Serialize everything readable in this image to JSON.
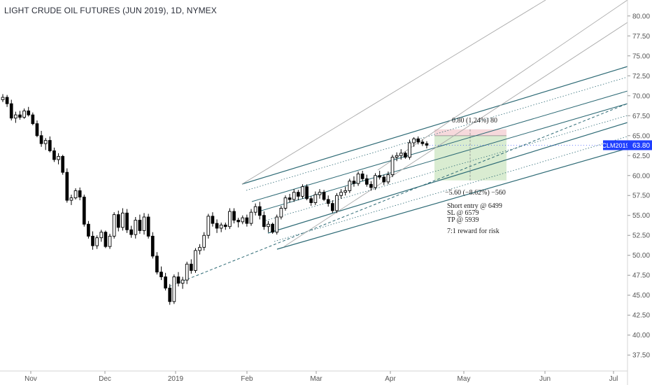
{
  "chart_title": "LIGHT CRUDE OIL FUTURES (JUN 2019), 1D, NYMEX",
  "price_tag": {
    "symbol": "CLM2019",
    "value": "63.80",
    "color": "#1f3fff"
  },
  "colors": {
    "up": "#ffffff",
    "down": "#000000",
    "channel": "#2d6a75",
    "guide": "#a9a9a9",
    "stop_zone": "#f6d9dc",
    "target_zone": "#d9ecd1"
  },
  "chart_data": {
    "type": "candlestick",
    "interval": "1D",
    "ylim": [
      35.5,
      82
    ],
    "y_ticks": [
      "37.50",
      "40.00",
      "42.50",
      "45.00",
      "47.50",
      "50.00",
      "52.50",
      "55.00",
      "57.50",
      "60.00",
      "62.50",
      "65.00",
      "67.50",
      "70.00",
      "72.50",
      "75.00",
      "77.50",
      "80.00"
    ],
    "x_ticks": [
      "Nov",
      "Dec",
      "2019",
      "Feb",
      "Mar",
      "Apr",
      "May",
      "Jun",
      "Jul"
    ],
    "candles": [
      [
        69.5,
        70.2,
        69.2,
        69.8
      ],
      [
        69.8,
        70.1,
        68.6,
        69.0
      ],
      [
        69.0,
        69.5,
        66.9,
        67.2
      ],
      [
        67.2,
        68.0,
        66.6,
        67.6
      ],
      [
        67.6,
        68.1,
        67.0,
        67.3
      ],
      [
        67.3,
        68.4,
        67.1,
        68.1
      ],
      [
        68.1,
        68.6,
        67.4,
        67.6
      ],
      [
        67.6,
        67.9,
        66.3,
        66.5
      ],
      [
        66.5,
        66.9,
        64.8,
        65.0
      ],
      [
        65.0,
        65.6,
        63.6,
        64.0
      ],
      [
        64.0,
        64.7,
        63.2,
        64.4
      ],
      [
        64.4,
        64.9,
        62.9,
        63.1
      ],
      [
        63.1,
        63.5,
        61.7,
        62.0
      ],
      [
        62.0,
        62.8,
        61.4,
        62.4
      ],
      [
        62.4,
        62.6,
        60.1,
        60.4
      ],
      [
        60.4,
        60.9,
        56.6,
        56.9
      ],
      [
        56.9,
        57.6,
        56.3,
        57.2
      ],
      [
        57.2,
        58.4,
        57.0,
        58.1
      ],
      [
        58.1,
        58.5,
        56.9,
        57.3
      ],
      [
        57.3,
        57.6,
        53.6,
        53.9
      ],
      [
        53.9,
        54.3,
        52.1,
        52.4
      ],
      [
        52.4,
        53.0,
        50.7,
        51.2
      ],
      [
        51.2,
        52.5,
        50.8,
        52.2
      ],
      [
        52.2,
        53.2,
        51.7,
        52.9
      ],
      [
        52.9,
        53.1,
        50.9,
        51.1
      ],
      [
        51.1,
        52.7,
        50.8,
        52.4
      ],
      [
        52.4,
        55.4,
        52.1,
        55.1
      ],
      [
        55.1,
        55.6,
        53.0,
        53.5
      ],
      [
        53.5,
        55.9,
        53.1,
        55.3
      ],
      [
        55.3,
        55.8,
        52.8,
        53.2
      ],
      [
        53.2,
        53.7,
        52.2,
        52.6
      ],
      [
        52.6,
        54.8,
        52.1,
        54.4
      ],
      [
        54.4,
        55.1,
        52.7,
        53.1
      ],
      [
        53.1,
        55.3,
        52.6,
        54.8
      ],
      [
        54.8,
        55.2,
        52.1,
        52.4
      ],
      [
        52.4,
        52.9,
        49.6,
        49.9
      ],
      [
        49.9,
        50.4,
        47.6,
        47.9
      ],
      [
        47.9,
        48.6,
        46.9,
        47.3
      ],
      [
        47.3,
        47.8,
        45.6,
        45.9
      ],
      [
        45.9,
        46.4,
        43.8,
        44.2
      ],
      [
        44.2,
        47.6,
        43.9,
        47.3
      ],
      [
        47.3,
        47.9,
        46.1,
        46.5
      ],
      [
        46.5,
        47.3,
        45.8,
        46.9
      ],
      [
        46.9,
        49.2,
        46.4,
        48.9
      ],
      [
        48.9,
        49.5,
        47.7,
        48.1
      ],
      [
        48.1,
        50.9,
        47.8,
        50.6
      ],
      [
        50.6,
        51.4,
        50.1,
        51.0
      ],
      [
        51.0,
        52.9,
        50.6,
        52.5
      ],
      [
        52.5,
        55.2,
        52.1,
        54.9
      ],
      [
        54.9,
        55.4,
        53.6,
        54.0
      ],
      [
        54.0,
        54.5,
        52.8,
        53.4
      ],
      [
        53.4,
        54.1,
        52.9,
        53.8
      ],
      [
        53.8,
        54.1,
        53.2,
        53.6
      ],
      [
        53.6,
        55.9,
        53.3,
        55.5
      ],
      [
        55.5,
        55.9,
        54.0,
        54.4
      ],
      [
        54.4,
        54.7,
        53.5,
        54.2
      ],
      [
        54.2,
        55.0,
        53.9,
        54.7
      ],
      [
        54.7,
        55.1,
        53.6,
        54.0
      ],
      [
        54.0,
        55.8,
        53.7,
        55.4
      ],
      [
        55.4,
        56.5,
        55.0,
        56.1
      ],
      [
        56.1,
        56.7,
        54.5,
        55.0
      ],
      [
        55.0,
        55.5,
        53.2,
        53.6
      ],
      [
        53.6,
        54.3,
        52.9,
        53.9
      ],
      [
        53.9,
        54.1,
        52.7,
        52.9
      ],
      [
        52.9,
        55.1,
        52.6,
        54.8
      ],
      [
        54.8,
        56.2,
        54.5,
        55.9
      ],
      [
        55.9,
        57.5,
        55.6,
        57.2
      ],
      [
        57.2,
        57.7,
        56.6,
        57.0
      ],
      [
        57.0,
        58.3,
        56.7,
        57.9
      ],
      [
        57.9,
        58.2,
        56.9,
        57.4
      ],
      [
        57.4,
        58.9,
        57.1,
        58.6
      ],
      [
        58.6,
        58.9,
        56.9,
        57.1
      ],
      [
        57.1,
        57.4,
        56.2,
        56.6
      ],
      [
        56.6,
        58.0,
        56.3,
        57.6
      ],
      [
        57.6,
        58.3,
        57.1,
        57.9
      ],
      [
        57.9,
        58.2,
        56.8,
        57.0
      ],
      [
        57.0,
        57.5,
        56.1,
        56.5
      ],
      [
        56.5,
        56.9,
        55.3,
        55.6
      ],
      [
        55.6,
        57.8,
        55.3,
        57.5
      ],
      [
        57.5,
        58.3,
        57.1,
        57.9
      ],
      [
        57.9,
        58.6,
        57.5,
        58.1
      ],
      [
        58.1,
        59.6,
        57.8,
        59.3
      ],
      [
        59.3,
        59.9,
        58.6,
        59.0
      ],
      [
        59.0,
        60.5,
        58.7,
        60.2
      ],
      [
        60.2,
        60.6,
        59.3,
        59.6
      ],
      [
        59.6,
        60.1,
        58.6,
        58.9
      ],
      [
        58.9,
        59.3,
        58.1,
        58.5
      ],
      [
        58.5,
        60.3,
        58.2,
        60.0
      ],
      [
        60.0,
        60.6,
        59.5,
        59.8
      ],
      [
        59.8,
        60.1,
        58.8,
        59.2
      ],
      [
        59.2,
        60.5,
        58.9,
        60.1
      ],
      [
        60.1,
        62.6,
        59.8,
        62.3
      ],
      [
        62.3,
        62.9,
        61.8,
        62.5
      ],
      [
        62.5,
        63.3,
        62.0,
        62.8
      ],
      [
        62.8,
        63.0,
        62.1,
        62.3
      ],
      [
        62.3,
        64.5,
        62.0,
        64.1
      ],
      [
        64.1,
        64.8,
        63.6,
        64.6
      ],
      [
        64.6,
        64.9,
        63.9,
        64.2
      ],
      [
        64.2,
        64.5,
        63.7,
        64.0
      ],
      [
        64.0,
        64.3,
        63.4,
        63.8
      ]
    ],
    "annotations": {
      "upper_label": "0.80 (1.24%) 80",
      "lower_label": "−5.60 (−8.62%) −560",
      "entry": "Short entry @ 6499",
      "stop": "SL @ 6579",
      "target": "TP @ 5939",
      "ratio": "7:1 reward for risk"
    }
  }
}
